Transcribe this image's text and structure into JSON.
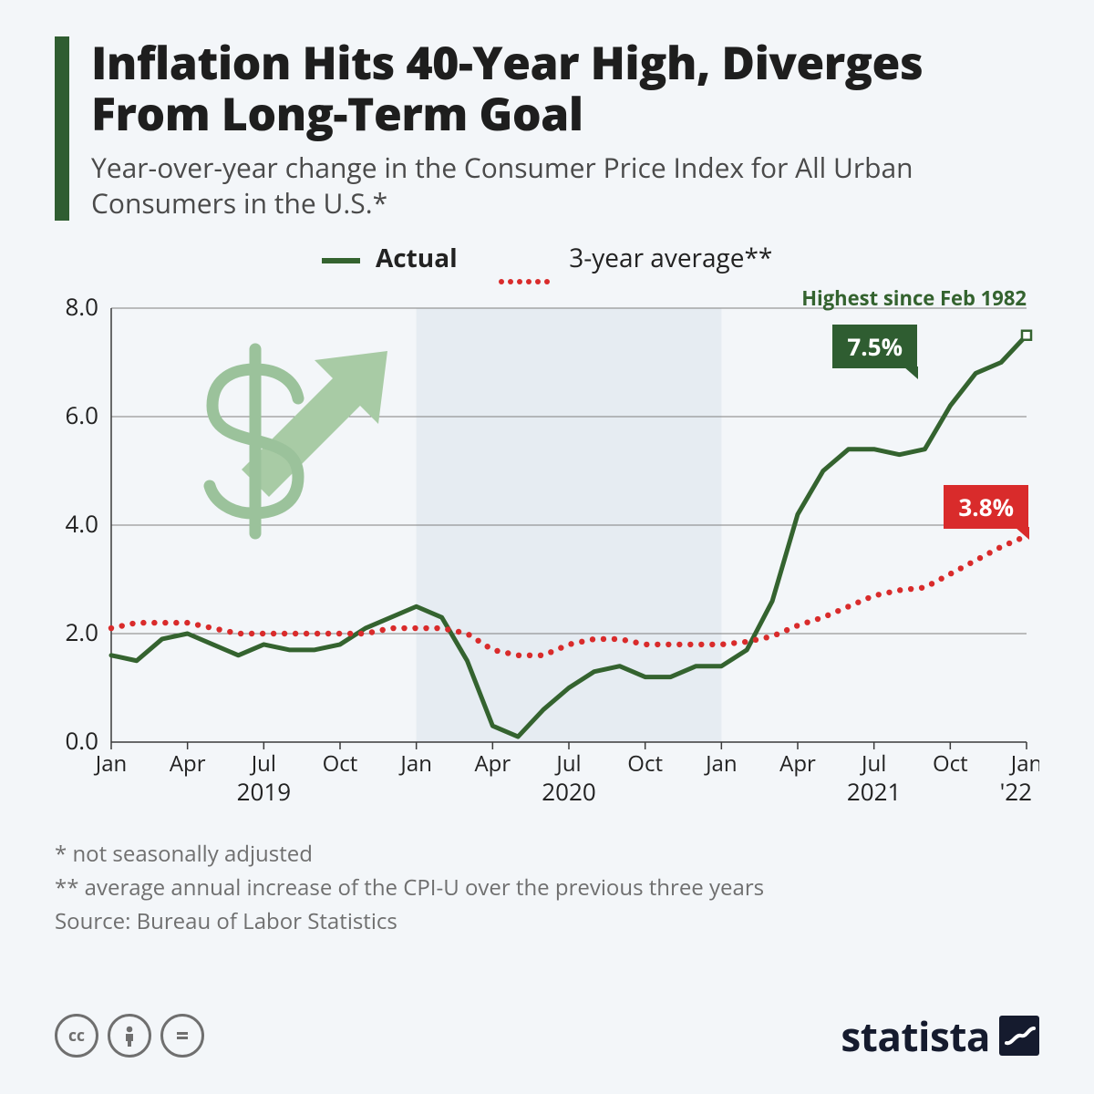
{
  "title": "Inflation Hits 40-Year High, Diverges From Long-Term Goal",
  "subtitle": "Year-over-year change in the Consumer Price Index for All Urban Consumers in the U.S.*",
  "legend": {
    "series_a": "Actual",
    "series_b": "3-year average**"
  },
  "colors": {
    "accent": "#2f5d31",
    "actual_line": "#34632f",
    "avg_line": "#d92b2b",
    "grid": "#808080",
    "axis": "#3a3a3a",
    "band": "#e6ecf2",
    "dollar_stroke": "#9bc29b",
    "arrow_fill": "#a8cba5",
    "badge_actual_bg": "#2f5d31",
    "badge_avg_bg": "#d92b2b",
    "annotation_text": "#34632f",
    "background": "#f3f6f9",
    "text_dark": "#1e1e1e",
    "text_muted": "#6f6f6f"
  },
  "chart": {
    "type": "line",
    "ylim": [
      0,
      8
    ],
    "ytick_step": 2,
    "ytick_labels": [
      "0.0",
      "2.0",
      "4.0",
      "6.0",
      "8.0"
    ],
    "x_months": [
      "Jan",
      "",
      "",
      "Apr",
      "",
      "",
      "Jul",
      "",
      "",
      "Oct",
      "",
      "",
      "Jan",
      "",
      "",
      "Apr",
      "",
      "",
      "Jul",
      "",
      "",
      "Oct",
      "",
      "",
      "Jan",
      "",
      "",
      "Apr",
      "",
      "",
      "Jul",
      "",
      "",
      "Oct",
      "",
      "",
      "Jan"
    ],
    "x_ticks": {
      "major_idx": [
        0,
        3,
        6,
        9,
        12,
        15,
        18,
        21,
        24,
        27,
        30,
        33,
        36
      ],
      "labels": [
        "Jan",
        "Apr",
        "Jul",
        "Oct",
        "Jan",
        "Apr",
        "Jul",
        "Oct",
        "Jan",
        "Apr",
        "Jul",
        "Oct",
        "Jan"
      ]
    },
    "year_labels": [
      {
        "label": "2019",
        "center_idx": 6
      },
      {
        "label": "2020",
        "center_idx": 18
      },
      {
        "label": "2021",
        "center_idx": 30
      },
      {
        "label": "'22",
        "center_idx": 36
      }
    ],
    "shaded_band": {
      "from_idx": 12,
      "to_idx": 24
    },
    "series": {
      "actual": [
        1.6,
        1.5,
        1.9,
        2.0,
        1.8,
        1.6,
        1.8,
        1.7,
        1.7,
        1.8,
        2.1,
        2.3,
        2.5,
        2.3,
        1.5,
        0.3,
        0.1,
        0.6,
        1.0,
        1.3,
        1.4,
        1.2,
        1.2,
        1.4,
        1.4,
        1.7,
        2.6,
        4.2,
        5.0,
        5.4,
        5.4,
        5.3,
        5.4,
        6.2,
        6.8,
        7.0,
        7.5
      ],
      "avg": [
        2.1,
        2.2,
        2.2,
        2.2,
        2.1,
        2.0,
        2.0,
        2.0,
        2.0,
        2.0,
        2.0,
        2.1,
        2.1,
        2.1,
        2.0,
        1.7,
        1.6,
        1.6,
        1.8,
        1.9,
        1.9,
        1.8,
        1.8,
        1.8,
        1.8,
        1.85,
        1.95,
        2.15,
        2.3,
        2.5,
        2.7,
        2.8,
        2.85,
        3.1,
        3.35,
        3.6,
        3.8
      ]
    },
    "line_widths": {
      "actual": 5,
      "avg_dot_r": 3.2,
      "avg_dot_gap": 12
    },
    "annotation": {
      "text": "Highest since Feb 1982"
    },
    "badges": {
      "actual": "7.5%",
      "avg": "3.8%"
    }
  },
  "footnotes": {
    "f1": "*   not seasonally adjusted",
    "f2": "** average annual increase of the CPI-U over the previous three years",
    "source": "Source: Bureau of Labor Statistics"
  },
  "brand": "statista"
}
